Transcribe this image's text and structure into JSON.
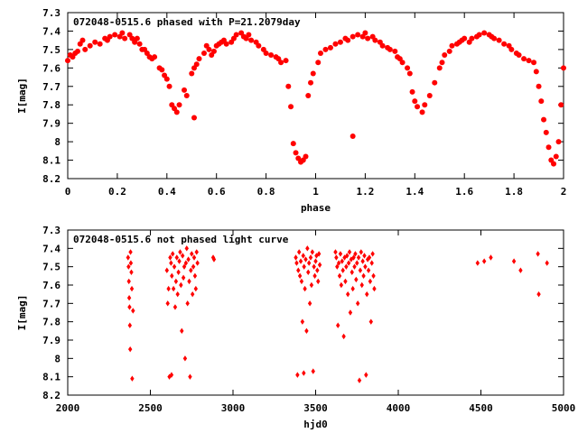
{
  "colors": {
    "points": "#ff0000",
    "axes": "#000000",
    "background": "#ffffff"
  },
  "chart_data": [
    {
      "type": "scatter",
      "title": "072048-0515.6 phased with P=21.2079day",
      "xlabel": "phase",
      "ylabel": "I[mag]",
      "xlim": [
        0,
        2
      ],
      "ylim": [
        8.2,
        7.3
      ],
      "y_inverted": true,
      "grid": false,
      "legend": "none",
      "marker": "filled circle",
      "xticks": [
        0,
        0.2,
        0.4,
        0.6,
        0.8,
        1,
        1.2,
        1.4,
        1.6,
        1.8,
        2
      ],
      "xtick_labels": [
        "0",
        "0.2",
        "0.4",
        "0.6",
        "0.8",
        "1",
        "1.2",
        "1.4",
        "1.6",
        "1.8",
        "2"
      ],
      "yticks": [
        7.3,
        7.4,
        7.5,
        7.6,
        7.7,
        7.8,
        7.9,
        8.0,
        8.1,
        8.2
      ],
      "ytick_labels": [
        "7.3",
        "7.4",
        "7.5",
        "7.6",
        "7.7",
        "7.8",
        "7.9",
        "8",
        "8.1",
        "8.2"
      ],
      "points": [
        [
          0.0,
          7.56
        ],
        [
          0.01,
          7.53
        ],
        [
          0.02,
          7.54
        ],
        [
          0.03,
          7.52
        ],
        [
          0.04,
          7.51
        ],
        [
          0.05,
          7.47
        ],
        [
          0.06,
          7.45
        ],
        [
          0.07,
          7.5
        ],
        [
          0.09,
          7.48
        ],
        [
          0.11,
          7.46
        ],
        [
          0.13,
          7.47
        ],
        [
          0.15,
          7.44
        ],
        [
          0.16,
          7.45
        ],
        [
          0.17,
          7.43
        ],
        [
          0.19,
          7.42
        ],
        [
          0.21,
          7.43
        ],
        [
          0.22,
          7.41
        ],
        [
          0.23,
          7.44
        ],
        [
          0.25,
          7.42
        ],
        [
          0.26,
          7.44
        ],
        [
          0.27,
          7.46
        ],
        [
          0.28,
          7.44
        ],
        [
          0.29,
          7.47
        ],
        [
          0.3,
          7.5
        ],
        [
          0.31,
          7.5
        ],
        [
          0.32,
          7.52
        ],
        [
          0.33,
          7.54
        ],
        [
          0.34,
          7.55
        ],
        [
          0.35,
          7.54
        ],
        [
          0.37,
          7.6
        ],
        [
          0.38,
          7.61
        ],
        [
          0.39,
          7.64
        ],
        [
          0.4,
          7.66
        ],
        [
          0.41,
          7.7
        ],
        [
          0.42,
          7.8
        ],
        [
          0.43,
          7.82
        ],
        [
          0.44,
          7.84
        ],
        [
          0.45,
          7.8
        ],
        [
          0.47,
          7.72
        ],
        [
          0.48,
          7.75
        ],
        [
          0.5,
          7.63
        ],
        [
          0.51,
          7.6
        ],
        [
          0.51,
          7.87
        ],
        [
          0.52,
          7.58
        ],
        [
          0.53,
          7.55
        ],
        [
          0.55,
          7.52
        ],
        [
          0.56,
          7.48
        ],
        [
          0.57,
          7.5
        ],
        [
          0.58,
          7.53
        ],
        [
          0.59,
          7.51
        ],
        [
          0.6,
          7.48
        ],
        [
          0.61,
          7.47
        ],
        [
          0.62,
          7.46
        ],
        [
          0.63,
          7.45
        ],
        [
          0.64,
          7.47
        ],
        [
          0.66,
          7.46
        ],
        [
          0.67,
          7.44
        ],
        [
          0.68,
          7.42
        ],
        [
          0.7,
          7.41
        ],
        [
          0.71,
          7.43
        ],
        [
          0.72,
          7.44
        ],
        [
          0.73,
          7.42
        ],
        [
          0.74,
          7.45
        ],
        [
          0.76,
          7.46
        ],
        [
          0.77,
          7.48
        ],
        [
          0.79,
          7.5
        ],
        [
          0.8,
          7.52
        ],
        [
          0.82,
          7.53
        ],
        [
          0.84,
          7.54
        ],
        [
          0.85,
          7.55
        ],
        [
          0.86,
          7.57
        ],
        [
          0.88,
          7.56
        ],
        [
          0.89,
          7.7
        ],
        [
          0.9,
          7.81
        ],
        [
          0.91,
          8.01
        ],
        [
          0.92,
          8.06
        ],
        [
          0.93,
          8.09
        ],
        [
          0.94,
          8.11
        ],
        [
          0.95,
          8.1
        ],
        [
          0.96,
          8.08
        ],
        [
          0.97,
          7.75
        ],
        [
          0.98,
          7.68
        ],
        [
          0.99,
          7.63
        ],
        [
          1.01,
          7.57
        ],
        [
          1.02,
          7.52
        ],
        [
          1.04,
          7.5
        ],
        [
          1.06,
          7.49
        ],
        [
          1.08,
          7.47
        ],
        [
          1.1,
          7.46
        ],
        [
          1.12,
          7.44
        ],
        [
          1.13,
          7.45
        ],
        [
          1.15,
          7.43
        ],
        [
          1.15,
          7.97
        ],
        [
          1.17,
          7.42
        ],
        [
          1.19,
          7.43
        ],
        [
          1.2,
          7.41
        ],
        [
          1.21,
          7.44
        ],
        [
          1.23,
          7.43
        ],
        [
          1.24,
          7.45
        ],
        [
          1.26,
          7.46
        ],
        [
          1.27,
          7.48
        ],
        [
          1.29,
          7.49
        ],
        [
          1.3,
          7.5
        ],
        [
          1.32,
          7.51
        ],
        [
          1.33,
          7.54
        ],
        [
          1.34,
          7.55
        ],
        [
          1.35,
          7.57
        ],
        [
          1.37,
          7.6
        ],
        [
          1.38,
          7.63
        ],
        [
          1.39,
          7.73
        ],
        [
          1.4,
          7.78
        ],
        [
          1.41,
          7.81
        ],
        [
          1.43,
          7.84
        ],
        [
          1.44,
          7.8
        ],
        [
          1.46,
          7.75
        ],
        [
          1.48,
          7.68
        ],
        [
          1.5,
          7.6
        ],
        [
          1.51,
          7.57
        ],
        [
          1.52,
          7.53
        ],
        [
          1.54,
          7.51
        ],
        [
          1.55,
          7.48
        ],
        [
          1.57,
          7.47
        ],
        [
          1.58,
          7.46
        ],
        [
          1.59,
          7.45
        ],
        [
          1.6,
          7.44
        ],
        [
          1.62,
          7.46
        ],
        [
          1.63,
          7.44
        ],
        [
          1.65,
          7.43
        ],
        [
          1.66,
          7.42
        ],
        [
          1.68,
          7.41
        ],
        [
          1.7,
          7.42
        ],
        [
          1.71,
          7.43
        ],
        [
          1.72,
          7.44
        ],
        [
          1.74,
          7.45
        ],
        [
          1.76,
          7.47
        ],
        [
          1.78,
          7.48
        ],
        [
          1.79,
          7.5
        ],
        [
          1.81,
          7.52
        ],
        [
          1.82,
          7.53
        ],
        [
          1.84,
          7.55
        ],
        [
          1.86,
          7.56
        ],
        [
          1.88,
          7.57
        ],
        [
          1.89,
          7.62
        ],
        [
          1.9,
          7.7
        ],
        [
          1.91,
          7.78
        ],
        [
          1.92,
          7.88
        ],
        [
          1.93,
          7.95
        ],
        [
          1.94,
          8.03
        ],
        [
          1.95,
          8.1
        ],
        [
          1.96,
          8.12
        ],
        [
          1.97,
          8.08
        ],
        [
          1.98,
          8.0
        ],
        [
          1.99,
          7.8
        ],
        [
          2.0,
          7.6
        ]
      ]
    },
    {
      "type": "scatter",
      "title": "072048-0515.6 not phased light curve",
      "xlabel": "hjd0",
      "ylabel": "I[mag]",
      "xlim": [
        2000,
        5000
      ],
      "ylim": [
        8.2,
        7.3
      ],
      "y_inverted": true,
      "grid": false,
      "legend": "none",
      "marker": "diamond",
      "xticks": [
        2000,
        2500,
        3000,
        3500,
        4000,
        4500,
        5000
      ],
      "xtick_labels": [
        "2000",
        "2500",
        "3000",
        "3500",
        "4000",
        "4500",
        "5000"
      ],
      "yticks": [
        7.3,
        7.4,
        7.5,
        7.6,
        7.7,
        7.8,
        7.9,
        8.0,
        8.1,
        8.2
      ],
      "ytick_labels": [
        "7.3",
        "7.4",
        "7.5",
        "7.6",
        "7.7",
        "7.8",
        "7.9",
        "8",
        "8.1",
        "8.2"
      ],
      "points": [
        [
          2365,
          7.45
        ],
        [
          2368,
          7.5
        ],
        [
          2370,
          7.58
        ],
        [
          2372,
          7.67
        ],
        [
          2374,
          7.72
        ],
        [
          2376,
          7.82
        ],
        [
          2378,
          7.95
        ],
        [
          2380,
          7.42
        ],
        [
          2382,
          7.48
        ],
        [
          2385,
          7.53
        ],
        [
          2388,
          7.62
        ],
        [
          2390,
          8.11
        ],
        [
          2395,
          7.74
        ],
        [
          2600,
          7.52
        ],
        [
          2605,
          7.7
        ],
        [
          2610,
          7.62
        ],
        [
          2615,
          8.1
        ],
        [
          2620,
          7.45
        ],
        [
          2625,
          7.48
        ],
        [
          2628,
          8.09
        ],
        [
          2630,
          7.55
        ],
        [
          2635,
          7.43
        ],
        [
          2640,
          7.62
        ],
        [
          2645,
          7.5
        ],
        [
          2650,
          7.72
        ],
        [
          2655,
          7.58
        ],
        [
          2660,
          7.45
        ],
        [
          2665,
          7.65
        ],
        [
          2670,
          7.53
        ],
        [
          2675,
          7.47
        ],
        [
          2680,
          7.42
        ],
        [
          2685,
          7.6
        ],
        [
          2690,
          7.85
        ],
        [
          2695,
          7.44
        ],
        [
          2700,
          7.56
        ],
        [
          2705,
          7.5
        ],
        [
          2710,
          8.0
        ],
        [
          2715,
          7.48
        ],
        [
          2720,
          7.4
        ],
        [
          2725,
          7.7
        ],
        [
          2730,
          7.46
        ],
        [
          2735,
          7.58
        ],
        [
          2740,
          8.1
        ],
        [
          2745,
          7.52
        ],
        [
          2750,
          7.43
        ],
        [
          2755,
          7.65
        ],
        [
          2760,
          7.5
        ],
        [
          2765,
          7.45
        ],
        [
          2770,
          7.55
        ],
        [
          2775,
          7.62
        ],
        [
          2780,
          7.42
        ],
        [
          2785,
          7.48
        ],
        [
          2880,
          7.45
        ],
        [
          2885,
          7.46
        ],
        [
          3380,
          7.45
        ],
        [
          3385,
          7.48
        ],
        [
          3390,
          8.09
        ],
        [
          3395,
          7.52
        ],
        [
          3400,
          7.42
        ],
        [
          3405,
          7.55
        ],
        [
          3410,
          7.47
        ],
        [
          3415,
          7.58
        ],
        [
          3420,
          7.8
        ],
        [
          3425,
          7.44
        ],
        [
          3428,
          8.08
        ],
        [
          3430,
          7.5
        ],
        [
          3435,
          7.62
        ],
        [
          3440,
          7.46
        ],
        [
          3445,
          7.85
        ],
        [
          3450,
          7.4
        ],
        [
          3455,
          7.53
        ],
        [
          3460,
          7.48
        ],
        [
          3465,
          7.7
        ],
        [
          3470,
          7.45
        ],
        [
          3475,
          7.6
        ],
        [
          3480,
          7.42
        ],
        [
          3485,
          8.07
        ],
        [
          3490,
          7.5
        ],
        [
          3495,
          7.55
        ],
        [
          3500,
          7.47
        ],
        [
          3505,
          7.44
        ],
        [
          3510,
          7.52
        ],
        [
          3515,
          7.58
        ],
        [
          3520,
          7.43
        ],
        [
          3525,
          7.49
        ],
        [
          3620,
          7.42
        ],
        [
          3625,
          7.45
        ],
        [
          3630,
          7.5
        ],
        [
          3635,
          7.82
        ],
        [
          3640,
          7.48
        ],
        [
          3645,
          7.55
        ],
        [
          3650,
          7.43
        ],
        [
          3655,
          7.6
        ],
        [
          3660,
          7.47
        ],
        [
          3665,
          7.52
        ],
        [
          3670,
          7.88
        ],
        [
          3675,
          7.45
        ],
        [
          3680,
          7.58
        ],
        [
          3685,
          7.5
        ],
        [
          3690,
          7.44
        ],
        [
          3695,
          7.65
        ],
        [
          3700,
          7.48
        ],
        [
          3705,
          7.42
        ],
        [
          3710,
          7.75
        ],
        [
          3715,
          7.46
        ],
        [
          3720,
          7.53
        ],
        [
          3725,
          7.62
        ],
        [
          3730,
          7.45
        ],
        [
          3735,
          7.5
        ],
        [
          3740,
          7.43
        ],
        [
          3745,
          7.57
        ],
        [
          3750,
          7.48
        ],
        [
          3755,
          7.7
        ],
        [
          3760,
          7.45
        ],
        [
          3765,
          8.12
        ],
        [
          3770,
          7.52
        ],
        [
          3775,
          7.42
        ],
        [
          3780,
          7.6
        ],
        [
          3785,
          7.47
        ],
        [
          3790,
          7.55
        ],
        [
          3795,
          7.44
        ],
        [
          3800,
          7.5
        ],
        [
          3805,
          8.09
        ],
        [
          3810,
          7.65
        ],
        [
          3815,
          7.46
        ],
        [
          3820,
          7.52
        ],
        [
          3825,
          7.45
        ],
        [
          3830,
          7.58
        ],
        [
          3835,
          7.8
        ],
        [
          3840,
          7.48
        ],
        [
          3845,
          7.43
        ],
        [
          3850,
          7.55
        ],
        [
          3855,
          7.62
        ],
        [
          4480,
          7.48
        ],
        [
          4520,
          7.47
        ],
        [
          4560,
          7.45
        ],
        [
          4700,
          7.47
        ],
        [
          4740,
          7.52
        ],
        [
          4845,
          7.43
        ],
        [
          4850,
          7.65
        ],
        [
          4900,
          7.48
        ]
      ]
    }
  ]
}
